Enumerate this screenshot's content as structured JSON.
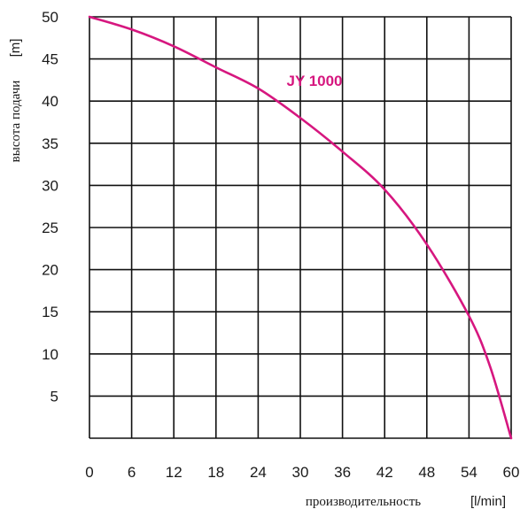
{
  "chart_data": {
    "type": "line",
    "xlabel": "производительность",
    "xunit": "[l/min]",
    "ylabel": "высота подачи",
    "yunit": "[m]",
    "xlim": [
      0,
      60
    ],
    "ylim": [
      0,
      50
    ],
    "x_ticks": [
      0,
      6,
      12,
      18,
      24,
      30,
      36,
      42,
      48,
      54,
      60
    ],
    "y_ticks": [
      5,
      10,
      15,
      20,
      25,
      30,
      35,
      40,
      45,
      50
    ],
    "grid": true,
    "series": [
      {
        "name": "JY 1000",
        "color": "#d6177f",
        "x": [
          0,
          6,
          12,
          18,
          24,
          30,
          36,
          42,
          48,
          54,
          57,
          60
        ],
        "y": [
          50,
          48.5,
          46.5,
          44,
          41.5,
          38,
          34,
          29.5,
          23,
          14.5,
          8.5,
          0
        ]
      }
    ]
  }
}
